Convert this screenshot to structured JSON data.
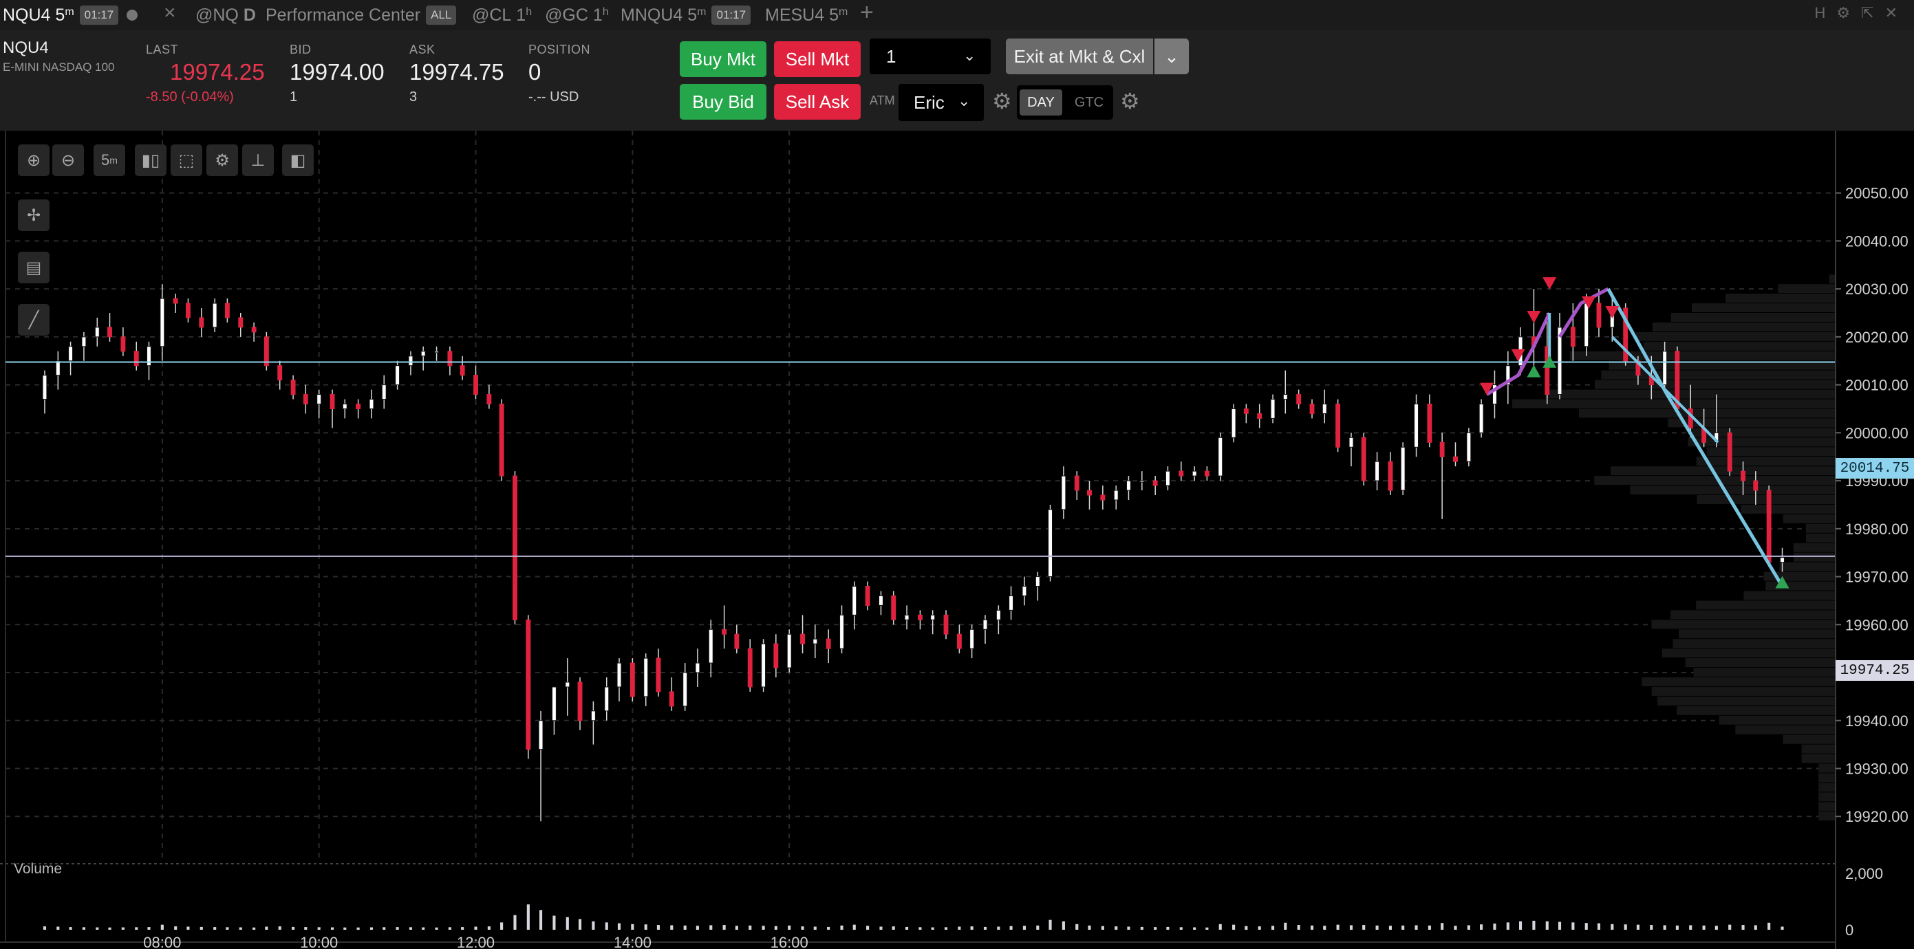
{
  "tabs": [
    {
      "symbol": "NQU4",
      "interval": "5",
      "unit": "m",
      "countdown": "01:17",
      "active": true
    },
    {
      "symbol": "@NQ",
      "interval": "D"
    },
    {
      "label": "Performance Center",
      "badge": "ALL"
    },
    {
      "symbol": "@CL",
      "interval": "1",
      "unit": "h"
    },
    {
      "symbol": "@GC",
      "interval": "1",
      "unit": "h"
    },
    {
      "symbol": "MNQU4",
      "interval": "5",
      "unit": "m",
      "countdown": "01:17"
    },
    {
      "symbol": "MESU4",
      "interval": "5",
      "unit": "m"
    }
  ],
  "tab_add": "+",
  "tab_close": "×",
  "window_controls": [
    "H",
    "⚙",
    "⇱",
    "✕"
  ],
  "quote": {
    "symbol": "NQU4",
    "description": "E-MINI NASDAQ 100",
    "last_label": "LAST",
    "last": "19974.25",
    "change": "-8.50 (-0.04%)",
    "bid_label": "BID",
    "bid": "19974.00",
    "bid_size": "1",
    "ask_label": "ASK",
    "ask": "19974.75",
    "ask_size": "3",
    "position_label": "POSITION",
    "position": "0",
    "position_value": "-.-- USD"
  },
  "order": {
    "buy_mkt": "Buy Mkt",
    "sell_mkt": "Sell Mkt",
    "buy_bid": "Buy Bid",
    "sell_ask": "Sell Ask",
    "quantity": "1",
    "exit": "Exit at Mkt & Cxl",
    "atm_label": "ATM",
    "atm_value": "Eric",
    "tif_day": "DAY",
    "tif_gtc": "GTC"
  },
  "colors": {
    "up": "#ffffff",
    "down": "#e1223f",
    "hline": "#8fd4ee",
    "last_line": "#b9b9d8",
    "trend_purple": "#a855c9",
    "trend_blue": "#76c4e0",
    "marker_red": "#e1223f",
    "marker_green": "#2fa553"
  },
  "toolbar": {
    "interval": "5",
    "unit": "m"
  },
  "volume_label": "Volume",
  "chart_data": {
    "type": "candlestick",
    "symbol": "NQU4",
    "interval": "5m",
    "y_ticks": [
      "20050.00",
      "20040.00",
      "20030.00",
      "20020.00",
      "20010.00",
      "20000.00",
      "19990.00",
      "19980.00",
      "19970.00",
      "19960.00",
      "19950.00",
      "19940.00",
      "19930.00",
      "19920.00"
    ],
    "ylim": [
      19911,
      20063
    ],
    "x_ticks": [
      "08:00",
      "10:00",
      "12:00",
      "14:00",
      "16:00"
    ],
    "x_tick_minutes": [
      480,
      600,
      720,
      840,
      960
    ],
    "volume_ticks": [
      "2,000",
      "0"
    ],
    "volume_max": 2200,
    "horizontal_line": {
      "price": 20014.75,
      "label": "20014.75"
    },
    "last_price": {
      "price": 19974.25,
      "label": "19974.25"
    },
    "candles": [
      [
        6.5,
        20007,
        20013,
        20004,
        20012,
        120
      ],
      [
        6.67,
        20012,
        20017,
        20009,
        20015,
        110
      ],
      [
        6.83,
        20015,
        20019,
        20012,
        20018,
        95
      ],
      [
        7.0,
        20018,
        20021,
        20015,
        20020,
        90
      ],
      [
        7.17,
        20020,
        20024,
        20018,
        20022,
        85
      ],
      [
        7.33,
        20022,
        20025,
        20019,
        20020,
        80
      ],
      [
        7.5,
        20020,
        20022,
        20016,
        20017,
        85
      ],
      [
        7.67,
        20017,
        20019,
        20013,
        20014,
        90
      ],
      [
        7.83,
        20014,
        20019,
        20011,
        20018,
        95
      ],
      [
        8.0,
        20018,
        20031,
        20015,
        20028,
        180
      ],
      [
        8.17,
        20028,
        20029,
        20025,
        20027,
        120
      ],
      [
        8.33,
        20027,
        20028,
        20023,
        20024,
        110
      ],
      [
        8.5,
        20024,
        20026,
        20020,
        20022,
        100
      ],
      [
        8.67,
        20022,
        20028,
        20021,
        20027,
        95
      ],
      [
        8.83,
        20027,
        20028,
        20023,
        20024,
        90
      ],
      [
        9.0,
        20024,
        20025,
        20020,
        20022,
        85
      ],
      [
        9.17,
        20022,
        20023,
        20019,
        20021,
        80
      ],
      [
        9.33,
        20020,
        20021,
        20013,
        20014,
        110
      ],
      [
        9.5,
        20014,
        20015,
        20009,
        20011,
        120
      ],
      [
        9.67,
        20011,
        20012,
        20007,
        20008,
        100
      ],
      [
        9.83,
        20008,
        20010,
        20004,
        20006,
        95
      ],
      [
        10.0,
        20006,
        20009,
        20003,
        20008,
        90
      ],
      [
        10.17,
        20008,
        20009,
        20001,
        20005,
        85
      ],
      [
        10.33,
        20005,
        20007,
        20003,
        20006,
        80
      ],
      [
        10.5,
        20006,
        20007,
        20003,
        20005,
        80
      ],
      [
        10.67,
        20005,
        20009,
        20003,
        20007,
        85
      ],
      [
        10.83,
        20007,
        20012,
        20005,
        20010,
        90
      ],
      [
        11.0,
        20010,
        20015,
        20009,
        20014,
        95
      ],
      [
        11.17,
        20014,
        20017,
        20012,
        20016,
        90
      ],
      [
        11.33,
        20016,
        20018,
        20013,
        20017,
        85
      ],
      [
        11.5,
        20017,
        20018,
        20015,
        20017,
        80
      ],
      [
        11.67,
        20017,
        20018,
        20012,
        20014,
        90
      ],
      [
        11.83,
        20014,
        20016,
        20011,
        20012,
        95
      ],
      [
        12.0,
        20012,
        20014,
        20007,
        20008,
        110
      ],
      [
        12.17,
        20008,
        20010,
        20005,
        20006,
        120
      ],
      [
        12.33,
        20006,
        20007,
        19990,
        19991,
        260
      ],
      [
        12.5,
        19991,
        19992,
        19960,
        19961,
        520
      ],
      [
        12.67,
        19961,
        19962,
        19932,
        19934,
        900
      ],
      [
        12.83,
        19934,
        19942,
        19919,
        19940,
        700
      ],
      [
        13.0,
        19940,
        19947,
        19937,
        19947,
        500
      ],
      [
        13.17,
        19947,
        19953,
        19941,
        19948,
        450
      ],
      [
        13.33,
        19948,
        19949,
        19938,
        19940,
        380
      ],
      [
        13.5,
        19940,
        19944,
        19935,
        19942,
        300
      ],
      [
        13.67,
        19942,
        19949,
        19940,
        19947,
        260
      ],
      [
        13.83,
        19947,
        19953,
        19944,
        19952,
        230
      ],
      [
        14.0,
        19952,
        19953,
        19944,
        19945,
        200
      ],
      [
        14.17,
        19945,
        19954,
        19943,
        19953,
        190
      ],
      [
        14.33,
        19953,
        19955,
        19945,
        19946,
        170
      ],
      [
        14.5,
        19946,
        19949,
        19942,
        19943,
        160
      ],
      [
        14.67,
        19943,
        19952,
        19942,
        19950,
        150
      ],
      [
        14.83,
        19950,
        19955,
        19947,
        19952,
        140
      ],
      [
        15.0,
        19952,
        19961,
        19949,
        19959,
        160
      ],
      [
        15.17,
        19959,
        19964,
        19955,
        19958,
        170
      ],
      [
        15.33,
        19958,
        19960,
        19954,
        19955,
        140
      ],
      [
        15.5,
        19955,
        19957,
        19946,
        19947,
        150
      ],
      [
        15.67,
        19947,
        19957,
        19946,
        19956,
        140
      ],
      [
        15.83,
        19956,
        19958,
        19949,
        19951,
        130
      ],
      [
        16.0,
        19951,
        19959,
        19950,
        19958,
        150
      ],
      [
        16.17,
        19958,
        19962,
        19954,
        19956,
        120
      ],
      [
        16.33,
        19956,
        19960,
        19953,
        19957,
        110
      ],
      [
        16.5,
        19957,
        19959,
        19952,
        19955,
        100
      ],
      [
        16.67,
        19955,
        19964,
        19954,
        19962,
        150
      ],
      [
        16.83,
        19962,
        19969,
        19959,
        19968,
        180
      ],
      [
        17.0,
        19968,
        19969,
        19963,
        19964,
        140
      ],
      [
        17.17,
        19964,
        19967,
        19962,
        19966,
        110
      ],
      [
        17.33,
        19966,
        19967,
        19960,
        19961,
        120
      ],
      [
        17.5,
        19961,
        19964,
        19959,
        19962,
        100
      ],
      [
        17.67,
        19962,
        19963,
        19959,
        19961,
        90
      ],
      [
        17.83,
        19961,
        19963,
        19958,
        19962,
        85
      ],
      [
        18.0,
        19962,
        19963,
        19957,
        19958,
        90
      ],
      [
        18.17,
        19958,
        19960,
        19954,
        19955,
        110
      ],
      [
        18.33,
        19955,
        19960,
        19953,
        19959,
        120
      ],
      [
        18.5,
        19959,
        19962,
        19956,
        19961,
        100
      ],
      [
        18.67,
        19961,
        19964,
        19958,
        19963,
        110
      ],
      [
        18.83,
        19963,
        19968,
        19961,
        19966,
        130
      ],
      [
        19.0,
        19966,
        19970,
        19964,
        19968,
        140
      ],
      [
        19.17,
        19968,
        19971,
        19965,
        19970,
        150
      ],
      [
        19.33,
        19970,
        19985,
        19969,
        19984,
        350
      ],
      [
        19.5,
        19984,
        19993,
        19982,
        19991,
        300
      ],
      [
        19.67,
        19991,
        19992,
        19986,
        19988,
        200
      ],
      [
        19.83,
        19988,
        19990,
        19984,
        19987,
        150
      ],
      [
        20.0,
        19987,
        19989,
        19984,
        19986,
        130
      ],
      [
        20.17,
        19986,
        19989,
        19984,
        19988,
        120
      ],
      [
        20.33,
        19988,
        19991,
        19986,
        19990,
        110
      ],
      [
        20.5,
        19990,
        19992,
        19988,
        19990,
        100
      ],
      [
        20.67,
        19990,
        19991,
        19987,
        19989,
        95
      ],
      [
        20.83,
        19989,
        19993,
        19988,
        19992,
        100
      ],
      [
        21.0,
        19992,
        19994,
        19990,
        19991,
        90
      ],
      [
        21.17,
        19991,
        19993,
        19990,
        19992,
        85
      ],
      [
        21.33,
        19992,
        19993,
        19990,
        19991,
        80
      ],
      [
        21.5,
        19991,
        20000,
        19990,
        19999,
        200
      ],
      [
        21.67,
        19999,
        20006,
        19998,
        20005,
        180
      ],
      [
        21.83,
        20005,
        20006,
        20002,
        20004,
        130
      ],
      [
        22.0,
        20004,
        20006,
        20001,
        20003,
        120
      ],
      [
        22.17,
        20003,
        20008,
        20002,
        20007,
        140
      ],
      [
        22.33,
        20007,
        20013,
        20004,
        20008,
        250
      ],
      [
        22.5,
        20008,
        20009,
        20005,
        20006,
        170
      ],
      [
        22.67,
        20006,
        20007,
        20003,
        20004,
        150
      ],
      [
        22.83,
        20004,
        20009,
        20002,
        20006,
        140
      ],
      [
        23.0,
        20006,
        20007,
        19996,
        19997,
        180
      ],
      [
        23.17,
        19997,
        20000,
        19993,
        19999,
        160
      ],
      [
        23.33,
        19999,
        20000,
        19989,
        19990,
        170
      ],
      [
        23.5,
        19990,
        19996,
        19988,
        19994,
        150
      ],
      [
        23.67,
        19994,
        19996,
        19987,
        19988,
        140
      ],
      [
        23.83,
        19988,
        19998,
        19987,
        19997,
        150
      ],
      [
        24.0,
        19997,
        20008,
        19995,
        20006,
        160
      ],
      [
        24.17,
        20006,
        20008,
        19997,
        19998,
        150
      ],
      [
        24.33,
        19998,
        20000,
        19982,
        19995,
        240
      ],
      [
        24.5,
        19995,
        19998,
        19993,
        19994,
        140
      ],
      [
        24.67,
        19994,
        20001,
        19993,
        20000,
        160
      ],
      [
        24.83,
        20000,
        20007,
        19999,
        20006,
        190
      ],
      [
        25.0,
        20006,
        20013,
        20003,
        20010,
        220
      ],
      [
        25.17,
        20010,
        20017,
        20006,
        20014,
        260
      ],
      [
        25.33,
        20014,
        20022,
        20012,
        20020,
        300
      ],
      [
        25.5,
        20020,
        20030,
        20012,
        20018,
        320
      ],
      [
        25.67,
        20018,
        20025,
        20006,
        20008,
        300
      ],
      [
        25.83,
        20008,
        20025,
        20007,
        20022,
        280
      ],
      [
        26.0,
        20022,
        20027,
        20015,
        20018,
        260
      ],
      [
        26.17,
        20018,
        20029,
        20016,
        20027,
        240
      ],
      [
        26.33,
        20027,
        20030,
        20020,
        20022,
        230
      ],
      [
        26.5,
        20022,
        20029,
        20019,
        20026,
        200
      ],
      [
        26.67,
        20026,
        20027,
        20014,
        20015,
        190
      ],
      [
        26.83,
        20015,
        20016,
        20010,
        20012,
        180
      ],
      [
        27.0,
        20012,
        20016,
        20007,
        20010,
        170
      ],
      [
        27.17,
        20010,
        20019,
        20009,
        20017,
        160
      ],
      [
        27.33,
        20017,
        20018,
        20004,
        20005,
        150
      ],
      [
        27.5,
        20005,
        20010,
        19999,
        20001,
        160
      ],
      [
        27.67,
        20001,
        20005,
        19997,
        19998,
        150
      ],
      [
        27.83,
        19998,
        20008,
        19997,
        20000,
        140
      ],
      [
        28.0,
        20000,
        20001,
        19991,
        19992,
        180
      ],
      [
        28.17,
        19992,
        19994,
        19987,
        19990,
        170
      ],
      [
        28.33,
        19990,
        19992,
        19985,
        19988,
        160
      ],
      [
        28.5,
        19988,
        19989,
        19972,
        19973,
        250
      ],
      [
        28.67,
        19973,
        19976,
        19971,
        19974,
        110
      ]
    ]
  }
}
